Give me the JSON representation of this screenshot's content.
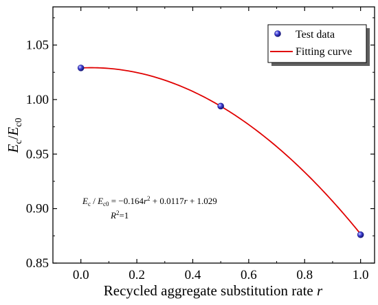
{
  "chart_data": {
    "type": "scatter",
    "x_label_main": "Recycled aggregate substitution rate ",
    "x_label_var": "r",
    "y_label": {
      "E1": "E",
      "sub1": "c",
      "slash": "/",
      "E2": "E",
      "sub2": "c0"
    },
    "xlim": [
      -0.1,
      1.05
    ],
    "ylim": [
      0.85,
      1.085
    ],
    "x_ticks": [
      "0.0",
      "0.2",
      "0.4",
      "0.6",
      "0.8",
      "1.0"
    ],
    "x_tick_values": [
      0.0,
      0.2,
      0.4,
      0.6,
      0.8,
      1.0
    ],
    "y_ticks": [
      "0.85",
      "0.90",
      "0.95",
      "1.00",
      "1.05"
    ],
    "y_tick_values": [
      0.85,
      0.9,
      0.95,
      1.0,
      1.05
    ],
    "series": [
      {
        "name": "Test data",
        "kind": "scatter",
        "color": "#3333cc",
        "x": [
          0.0,
          0.5,
          1.0
        ],
        "y": [
          1.029,
          0.994,
          0.876
        ]
      },
      {
        "name": "Fitting curve",
        "kind": "line",
        "color": "#e00000",
        "coefficients": {
          "a": -0.164,
          "b": 0.0117,
          "c": 1.029
        },
        "x_range": [
          0.0,
          1.0
        ]
      }
    ],
    "legend": {
      "position": "top-right",
      "entries": [
        "Test data",
        "Fitting curve"
      ]
    },
    "annotations": {
      "equation": {
        "lhs_E1": "E",
        "lhs_sub1": "c",
        "lhs_slash": " / ",
        "lhs_E2": "E",
        "lhs_sub2": "c0",
        "rhs_1": " = −0.164",
        "var_r1": "r",
        "sup_2": "2",
        "rhs_2": " + 0.0117",
        "var_r2": "r",
        "rhs_3": " + 1.029"
      },
      "r2": {
        "R": "R",
        "sup": "2",
        "val": "=1"
      }
    },
    "grid": false
  }
}
